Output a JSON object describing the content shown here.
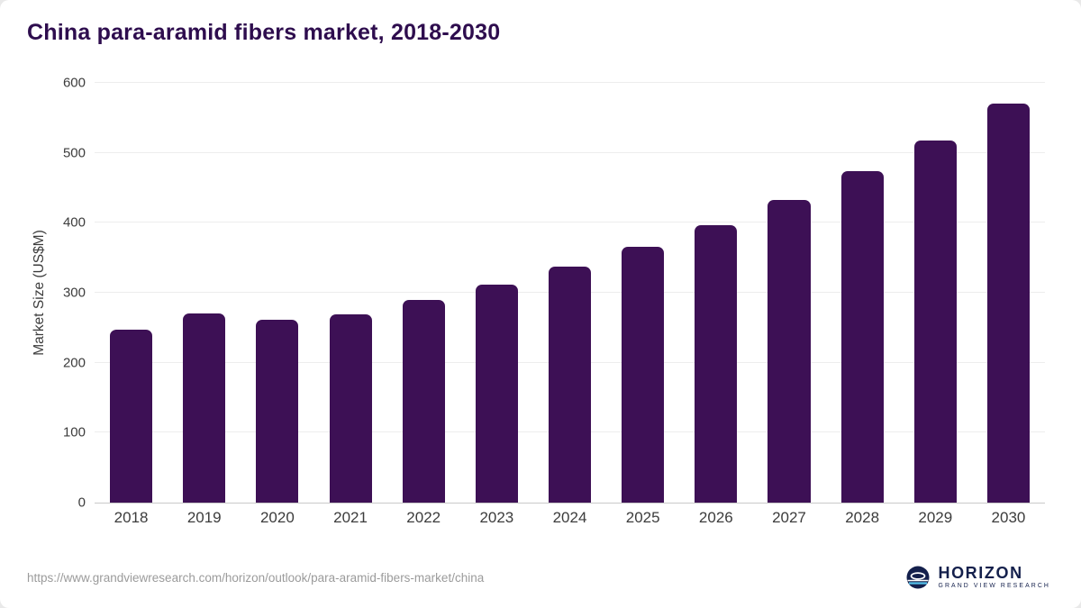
{
  "header": {
    "title": "China para-aramid fibers market, 2018-2030"
  },
  "chart_data": {
    "type": "bar",
    "title": "China para-aramid fibers market, 2018-2030",
    "categories": [
      "2018",
      "2019",
      "2020",
      "2021",
      "2022",
      "2023",
      "2024",
      "2025",
      "2026",
      "2027",
      "2028",
      "2029",
      "2030"
    ],
    "values": [
      247,
      270,
      262,
      269,
      290,
      312,
      337,
      366,
      397,
      433,
      474,
      518,
      571
    ],
    "xlabel": "",
    "ylabel": "Market Size (US$M)",
    "ylim": [
      0,
      600
    ],
    "ytick_step": 100,
    "grid": true,
    "legend": false,
    "bar_color": "#3d1055"
  },
  "colors": {
    "title": "#2e0d4e",
    "bar": "#3d1055",
    "gridline": "#ededed",
    "axis": "#c9c9c9",
    "logo_navy": "#14204c",
    "logo_lightblue": "#55c0ea"
  },
  "footer": {
    "source_url": "https://www.grandviewresearch.com/horizon/outlook/para-aramid-fibers-market/china",
    "logo": {
      "name": "HORIZON",
      "subtitle": "GRAND VIEW RESEARCH"
    }
  }
}
